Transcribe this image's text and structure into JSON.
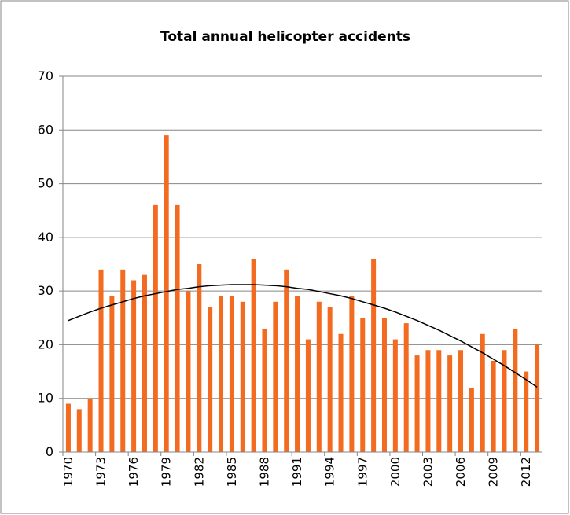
{
  "chart_data": {
    "type": "bar",
    "title": "Total annual helicopter accidents",
    "categories": [
      "1970",
      null,
      null,
      "1973",
      null,
      null,
      "1976",
      null,
      null,
      "1979",
      null,
      null,
      "1982",
      null,
      null,
      "1985",
      null,
      null,
      "1988",
      null,
      null,
      "1991",
      null,
      null,
      "1994",
      null,
      null,
      "1997",
      null,
      null,
      "2000",
      null,
      null,
      "2003",
      null,
      null,
      "2006",
      null,
      null,
      "2009",
      null,
      null,
      "2012",
      null
    ],
    "series": [
      {
        "type": "bar",
        "color": "#f26b21",
        "values": [
          9,
          8,
          10,
          34,
          29,
          34,
          32,
          33,
          46,
          59,
          46,
          30,
          35,
          27,
          29,
          29,
          28,
          36,
          23,
          28,
          34,
          29,
          21,
          28,
          27,
          22,
          29,
          25,
          36,
          25,
          21,
          24,
          18,
          19,
          19,
          18,
          19,
          12,
          22,
          17,
          19,
          23,
          15,
          20
        ]
      },
      {
        "type": "line",
        "color": "#000000",
        "values": [
          24.5,
          25.3,
          26.1,
          26.8,
          27.4,
          28.0,
          28.6,
          29.1,
          29.5,
          29.9,
          30.3,
          30.5,
          30.8,
          31.0,
          31.1,
          31.2,
          31.2,
          31.2,
          31.1,
          31.0,
          30.8,
          30.5,
          30.3,
          29.9,
          29.5,
          29.1,
          28.6,
          28.0,
          27.4,
          26.8,
          26.1,
          25.3,
          24.5,
          23.6,
          22.7,
          21.7,
          20.7,
          19.6,
          18.5,
          17.3,
          16.1,
          14.8,
          13.5,
          12.1
        ]
      }
    ],
    "ylim": [
      0,
      70
    ],
    "yticks": [
      0,
      10,
      20,
      30,
      40,
      50,
      60,
      70
    ],
    "grid": true
  }
}
